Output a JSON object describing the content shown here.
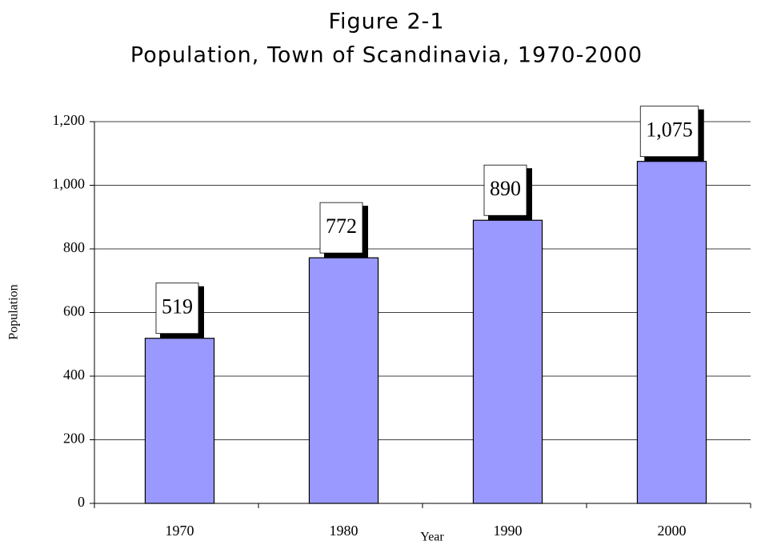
{
  "chart_data": {
    "type": "bar",
    "title": "Figure 2-1",
    "subtitle": "Population, Town of Scandinavia, 1970-2000",
    "x_label": "Year",
    "y_label": "Population",
    "categories": [
      "1970",
      "1980",
      "1990",
      "2000"
    ],
    "values": [
      519,
      772,
      890,
      1075
    ],
    "value_labels": [
      "519",
      "772",
      "890",
      "1,075"
    ],
    "color": "#9999ff",
    "ylim": [
      0,
      1200
    ],
    "yticks": [
      0,
      200,
      400,
      600,
      800,
      {
        "value": 1000,
        "label": "1,000"
      },
      {
        "value": 1200,
        "label": "1,200"
      }
    ],
    "grid": true
  }
}
